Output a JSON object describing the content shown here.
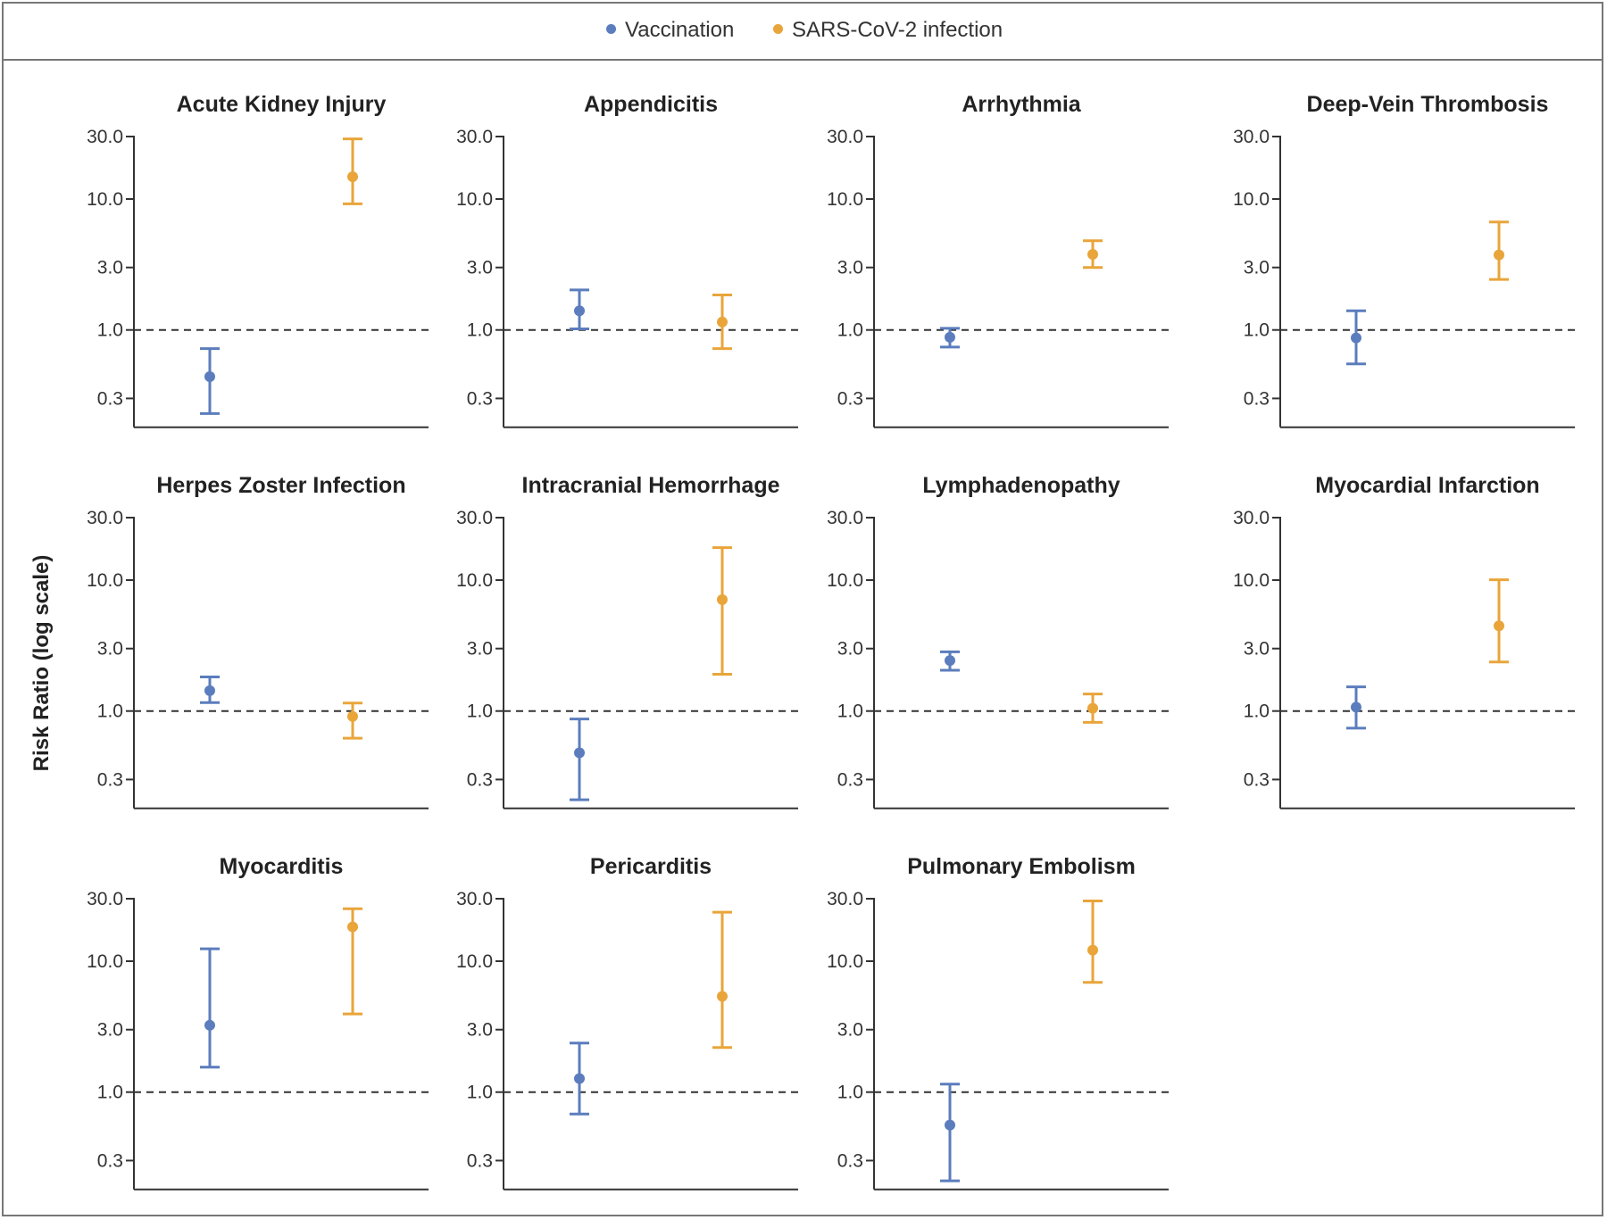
{
  "legend": {
    "items": [
      {
        "label": "Vaccination",
        "color": "#5B7DBD"
      },
      {
        "label": "SARS-CoV-2 infection",
        "color": "#E9A53A"
      }
    ]
  },
  "chart_data": {
    "type": "scatter",
    "subtype": "point-estimate-with-error-bars",
    "ylabel": "Risk Ratio (log scale)",
    "yscale": "log",
    "ylim": [
      0.16,
      35
    ],
    "yticks": [
      0.3,
      1.0,
      3.0,
      10.0,
      30.0
    ],
    "ytick_labels": [
      "0.3",
      "1.0",
      "3.0",
      "10.0",
      "30.0"
    ],
    "reference_line": 1.0,
    "series": [
      {
        "name": "Vaccination",
        "color": "#5B7DBD"
      },
      {
        "name": "SARS-CoV-2 infection",
        "color": "#E9A53A"
      }
    ],
    "panels": [
      {
        "title": "Acute Kidney Injury",
        "points": [
          {
            "series": "Vaccination",
            "value": 0.44,
            "low": 0.23,
            "high": 0.72
          },
          {
            "series": "SARS-CoV-2 infection",
            "value": 14.8,
            "low": 9.2,
            "high": 28.8
          }
        ]
      },
      {
        "title": "Appendicitis",
        "points": [
          {
            "series": "Vaccination",
            "value": 1.4,
            "low": 1.02,
            "high": 2.02
          },
          {
            "series": "SARS-CoV-2 infection",
            "value": 1.15,
            "low": 0.72,
            "high": 1.85
          }
        ]
      },
      {
        "title": "Arrhythmia",
        "points": [
          {
            "series": "Vaccination",
            "value": 0.88,
            "low": 0.74,
            "high": 1.03
          },
          {
            "series": "SARS-CoV-2 infection",
            "value": 3.78,
            "low": 3.0,
            "high": 4.8
          }
        ]
      },
      {
        "title": "Deep-Vein Thrombosis",
        "points": [
          {
            "series": "Vaccination",
            "value": 0.87,
            "low": 0.55,
            "high": 1.4
          },
          {
            "series": "SARS-CoV-2 infection",
            "value": 3.74,
            "low": 2.43,
            "high": 6.67
          }
        ]
      },
      {
        "title": "Herpes Zoster Infection",
        "points": [
          {
            "series": "Vaccination",
            "value": 1.43,
            "low": 1.16,
            "high": 1.82
          },
          {
            "series": "SARS-CoV-2 infection",
            "value": 0.91,
            "low": 0.62,
            "high": 1.15
          }
        ]
      },
      {
        "title": "Intracranial Hemorrhage",
        "points": [
          {
            "series": "Vaccination",
            "value": 0.48,
            "low": 0.21,
            "high": 0.87
          },
          {
            "series": "SARS-CoV-2 infection",
            "value": 7.1,
            "low": 1.91,
            "high": 17.71
          }
        ]
      },
      {
        "title": "Lymphadenopathy",
        "points": [
          {
            "series": "Vaccination",
            "value": 2.43,
            "low": 2.05,
            "high": 2.83
          },
          {
            "series": "SARS-CoV-2 infection",
            "value": 1.05,
            "low": 0.82,
            "high": 1.35
          }
        ]
      },
      {
        "title": "Myocardial Infarction",
        "points": [
          {
            "series": "Vaccination",
            "value": 1.07,
            "low": 0.74,
            "high": 1.53
          },
          {
            "series": "SARS-CoV-2 infection",
            "value": 4.47,
            "low": 2.37,
            "high": 10.06
          }
        ]
      },
      {
        "title": "Myocarditis",
        "points": [
          {
            "series": "Vaccination",
            "value": 3.24,
            "low": 1.55,
            "high": 12.44
          },
          {
            "series": "SARS-CoV-2 infection",
            "value": 18.28,
            "low": 3.95,
            "high": 25.12
          }
        ]
      },
      {
        "title": "Pericarditis",
        "points": [
          {
            "series": "Vaccination",
            "value": 1.27,
            "low": 0.68,
            "high": 2.37
          },
          {
            "series": "SARS-CoV-2 infection",
            "value": 5.39,
            "low": 2.19,
            "high": 23.68
          }
        ]
      },
      {
        "title": "Pulmonary Embolism",
        "points": [
          {
            "series": "Vaccination",
            "value": 0.56,
            "low": 0.21,
            "high": 1.15
          },
          {
            "series": "SARS-CoV-2 infection",
            "value": 12.14,
            "low": 6.89,
            "high": 28.86
          }
        ]
      }
    ]
  }
}
